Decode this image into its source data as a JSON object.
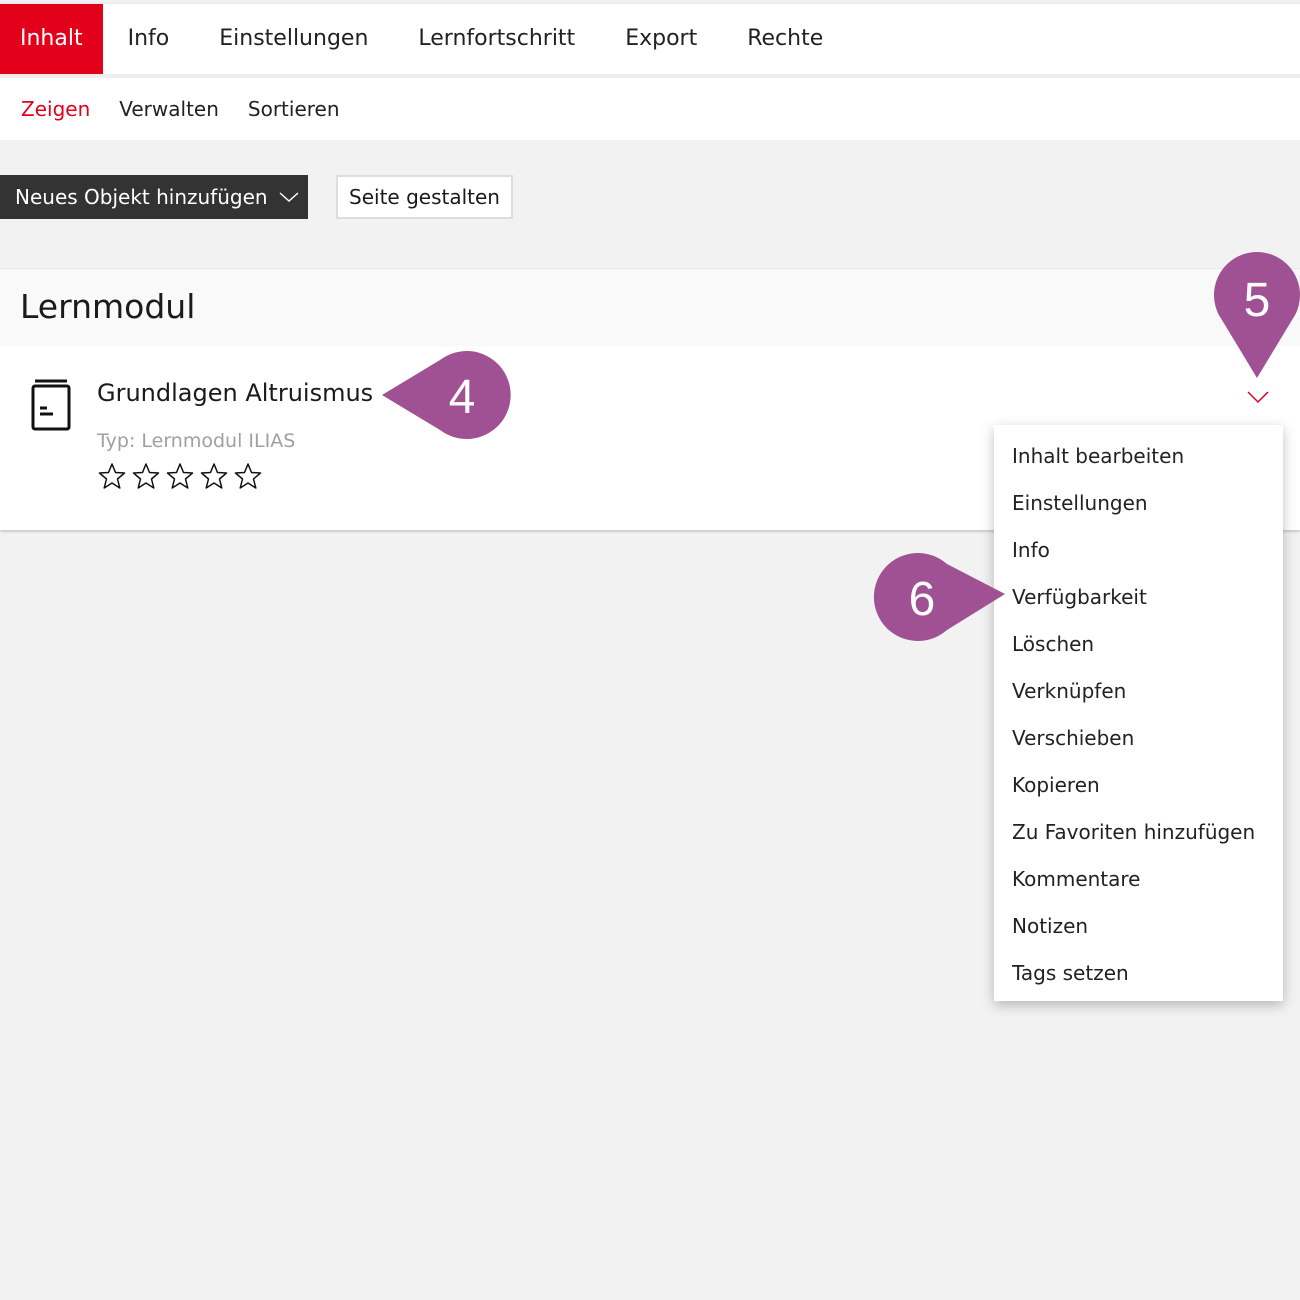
{
  "tabs": [
    "Inhalt",
    "Info",
    "Einstellungen",
    "Lernfortschritt",
    "Export",
    "Rechte"
  ],
  "subtabs": [
    "Zeigen",
    "Verwalten",
    "Sortieren"
  ],
  "toolbar": {
    "add_object": "Neues Objekt hinzufügen",
    "design_page": "Seite gestalten"
  },
  "section": {
    "title": "Lernmodul"
  },
  "item": {
    "title": "Grundlagen Altruismus",
    "type": "Typ: Lernmodul ILIAS",
    "rating": 0,
    "rating_max": 5,
    "icon": "learning-module-icon"
  },
  "actions_menu": [
    "Inhalt bearbeiten",
    "Einstellungen",
    "Info",
    "Verfügbarkeit",
    "Löschen",
    "Verknüpfen",
    "Verschieben",
    "Kopieren",
    "Zu Favoriten hinzufügen",
    "Kommentare",
    "Notizen",
    "Tags setzen"
  ],
  "markers": [
    "4",
    "5",
    "6"
  ],
  "colors": {
    "accent": "#e2001a",
    "marker": "#9f5193",
    "dark_button": "#333333"
  }
}
